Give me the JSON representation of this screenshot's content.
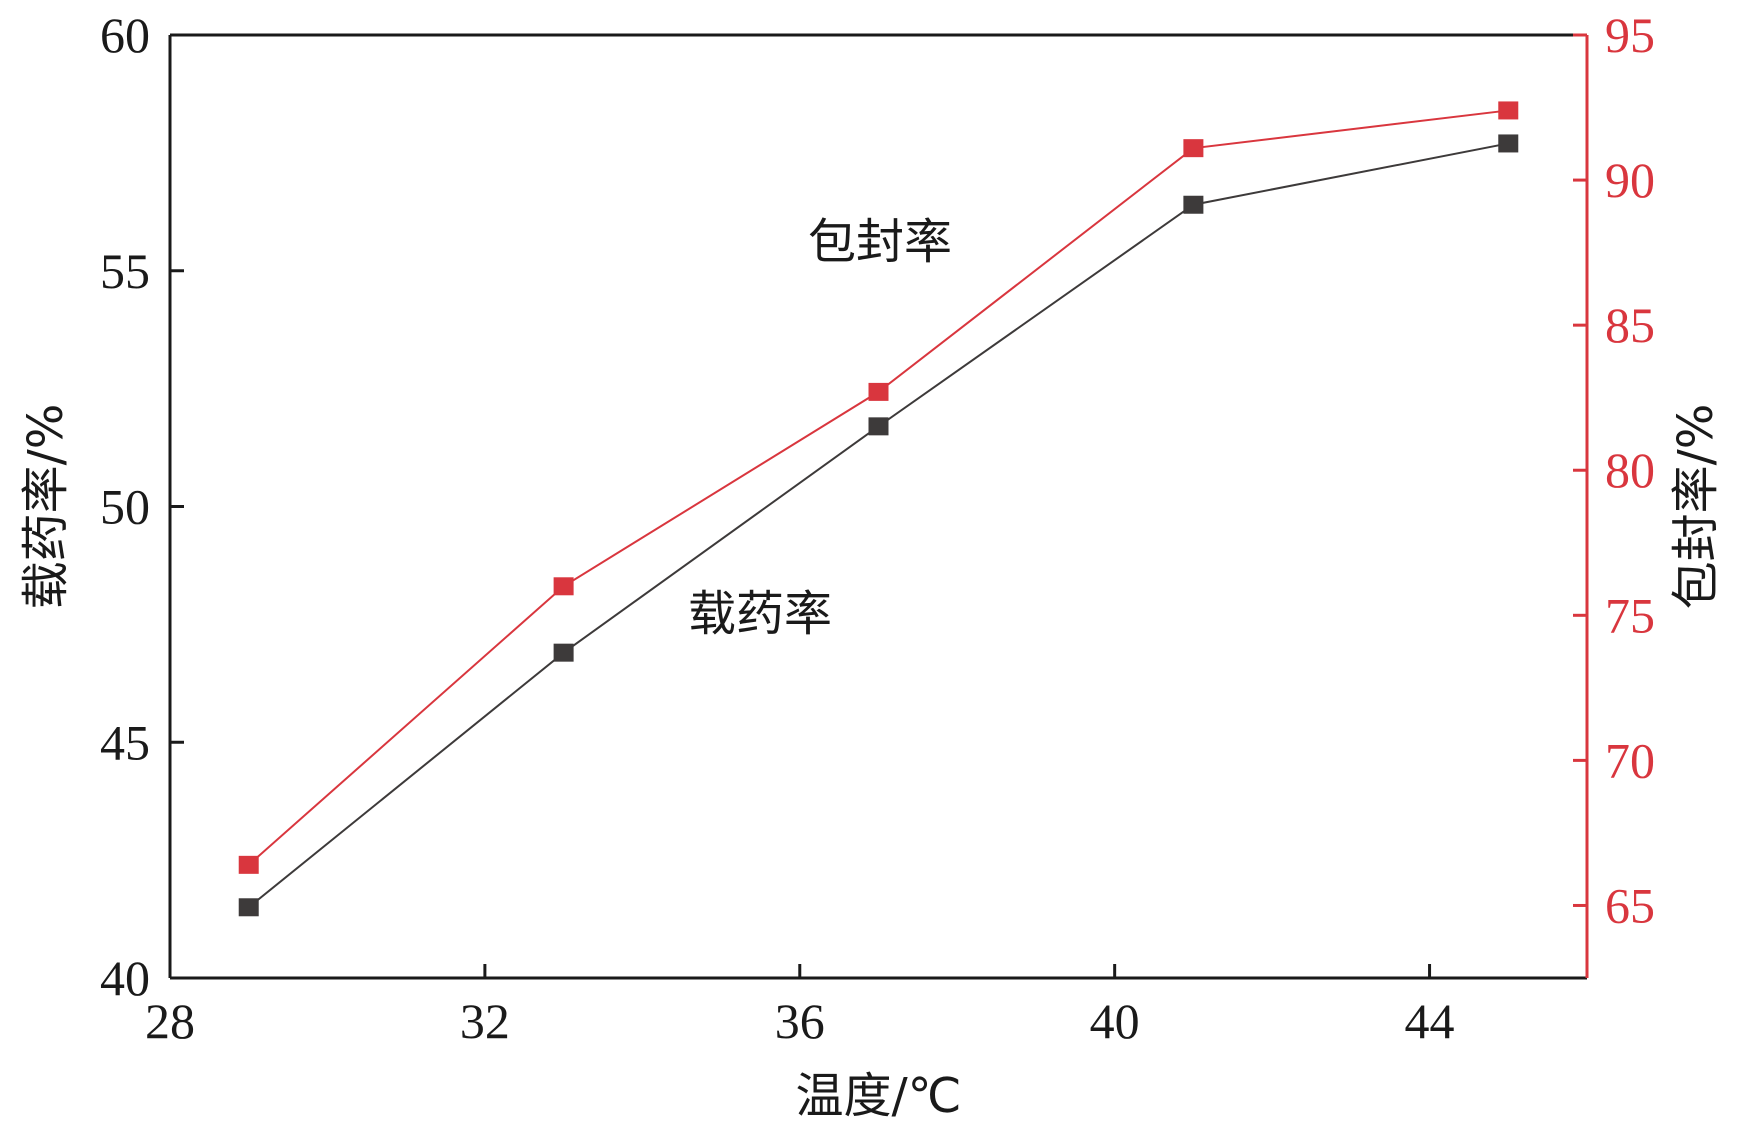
{
  "chart_data": {
    "type": "line",
    "x": [
      29,
      33,
      37,
      41,
      45
    ],
    "xlim": [
      28,
      46
    ],
    "xticks": [
      "28",
      "32",
      "36",
      "40",
      "44"
    ],
    "xlabel": "温度/℃",
    "ylabel_left": "载药率/%",
    "ylim_left": [
      40,
      60
    ],
    "yticks_left": [
      "40",
      "45",
      "50",
      "55",
      "60"
    ],
    "ylabel_right": "包封率/%",
    "ylim_right": [
      62.5,
      95
    ],
    "yticks_right": [
      "65",
      "70",
      "75",
      "80",
      "85",
      "90",
      "95"
    ],
    "series": [
      {
        "name": "载药率",
        "axis": "left",
        "color": "#3d3a3a",
        "values": [
          41.5,
          46.9,
          51.7,
          56.4,
          57.7
        ]
      },
      {
        "name": "包封率",
        "axis": "right",
        "color": "#d9363e",
        "values": [
          66.4,
          76.0,
          82.7,
          91.1,
          92.4
        ]
      }
    ],
    "annotations": [
      "包封率",
      "载药率"
    ],
    "grid": false,
    "legend": "none"
  }
}
